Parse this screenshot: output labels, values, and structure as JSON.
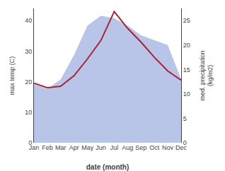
{
  "chart_data": {
    "type": "line",
    "categories": [
      "Jan",
      "Feb",
      "Mar",
      "Apr",
      "May",
      "Jun",
      "Jul",
      "Aug",
      "Sep",
      "Oct",
      "Nov",
      "Dec"
    ],
    "series": [
      {
        "type": "area",
        "axis": "y2",
        "color": "#b8c4e8",
        "values": [
          12.0,
          11.0,
          13.0,
          18.0,
          24.0,
          26.0,
          25.5,
          24.0,
          22.0,
          21.0,
          20.0,
          13.0
        ]
      },
      {
        "type": "line",
        "color": "#aa2233",
        "values": [
          19.5,
          18.0,
          18.5,
          22.0,
          27.5,
          33.5,
          43.0,
          37.5,
          33.0,
          28.0,
          23.5,
          20.5
        ]
      }
    ],
    "x_label": "date (month)",
    "y_label": "max temp (C)",
    "y2_label": "med. precipitation\n(kg/m2)",
    "ylim": [
      0,
      44
    ],
    "yticks": [
      0,
      10,
      20,
      30,
      40
    ],
    "y2lim": [
      0,
      27.5
    ],
    "y2ticks": [
      0,
      5,
      10,
      15,
      20,
      25
    ],
    "grid": false
  }
}
